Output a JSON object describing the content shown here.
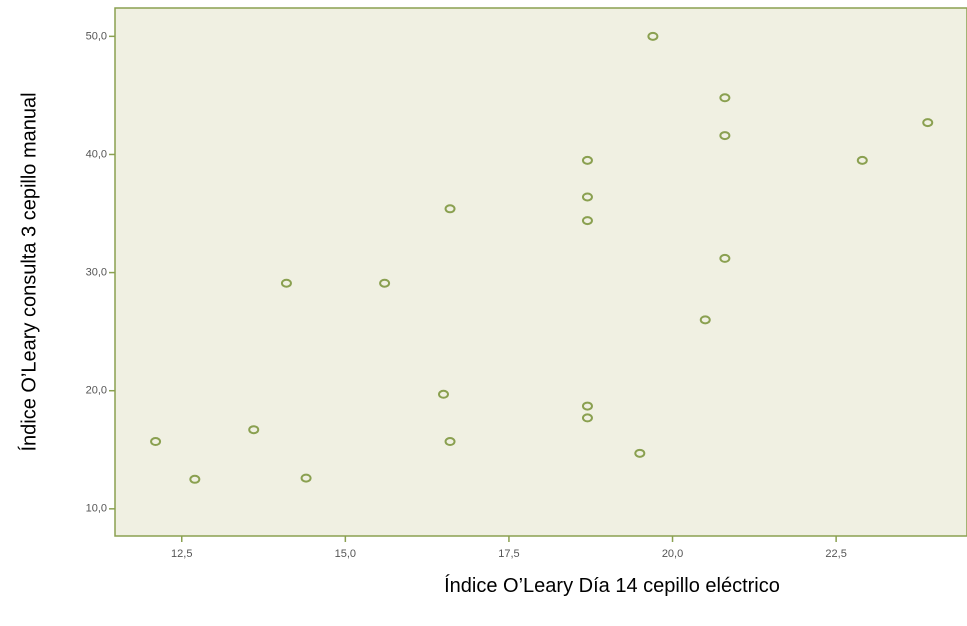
{
  "chart_data": {
    "type": "scatter",
    "xlabel": "Índice O’Leary Día 14 cepillo eléctrico",
    "ylabel": "Índice O’Leary consulta 3 cepillo manual",
    "x": [
      12.1,
      12.7,
      13.6,
      14.1,
      14.4,
      15.6,
      16.5,
      16.6,
      16.6,
      18.7,
      18.7,
      18.7,
      18.7,
      18.7,
      19.5,
      19.7,
      20.5,
      20.8,
      20.8,
      20.8,
      22.9,
      23.9
    ],
    "y": [
      15.7,
      12.5,
      16.7,
      29.1,
      12.6,
      29.1,
      19.7,
      35.4,
      15.7,
      39.5,
      36.4,
      34.4,
      18.7,
      17.7,
      14.7,
      50.0,
      26.0,
      44.8,
      41.6,
      31.2,
      39.5,
      42.7
    ],
    "color": "#8aa050",
    "xlim": [
      11.48,
      24.5
    ],
    "ylim": [
      7.7,
      52.4
    ],
    "xticks": [
      {
        "value": 12.5,
        "label": "12,5"
      },
      {
        "value": 15.0,
        "label": "15,0"
      },
      {
        "value": 17.5,
        "label": "17,5"
      },
      {
        "value": 20.0,
        "label": "20,0"
      },
      {
        "value": 22.5,
        "label": "22,5"
      }
    ],
    "yticks": [
      {
        "value": 10,
        "label": "10,0"
      },
      {
        "value": 20,
        "label": "20,0"
      },
      {
        "value": 30,
        "label": "30,0"
      },
      {
        "value": 40,
        "label": "40,0"
      },
      {
        "value": 50,
        "label": "50,0"
      }
    ]
  }
}
